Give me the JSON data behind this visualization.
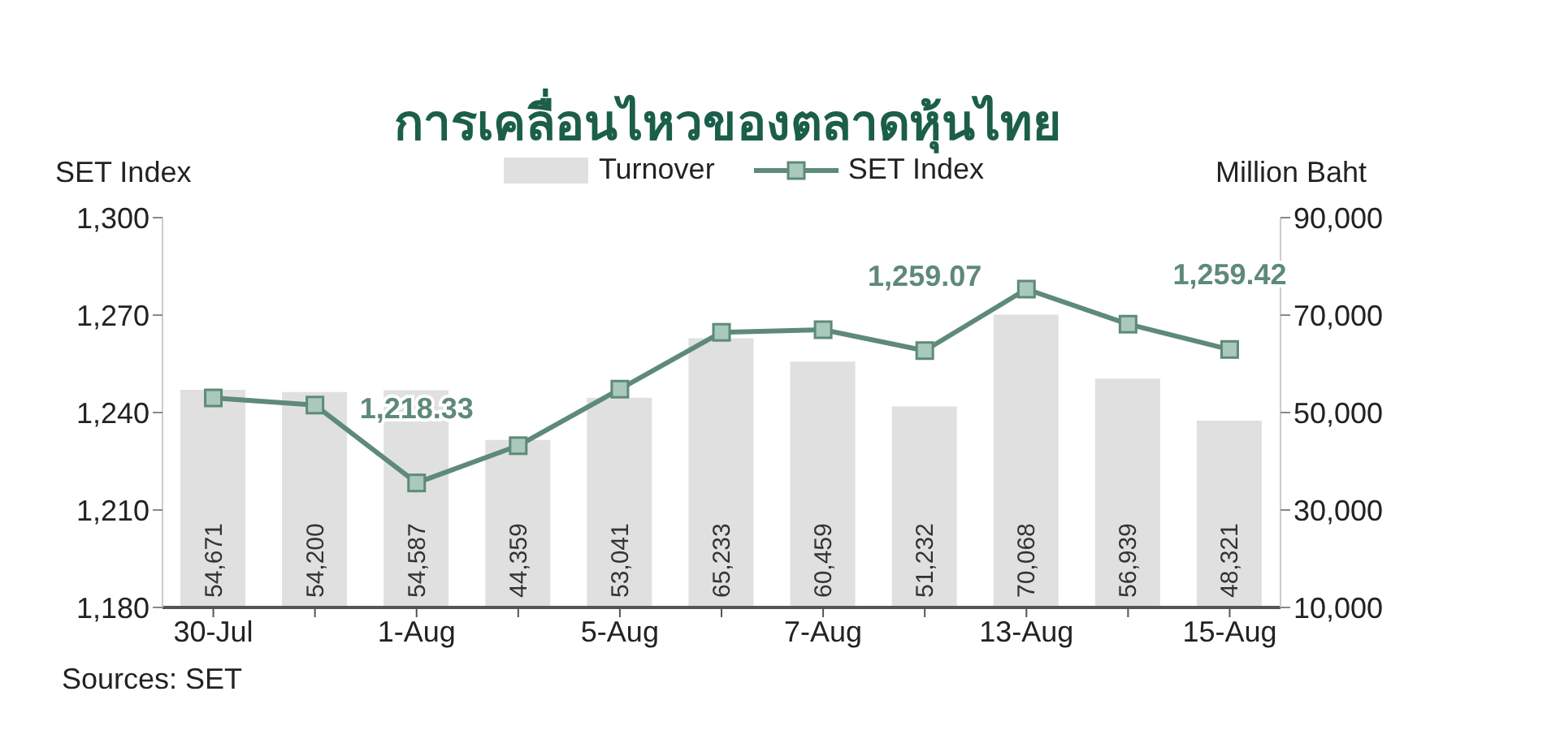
{
  "chart_data": {
    "type": "bar",
    "title": "การเคลื่อนไหวของตลาดหุ้นไทย",
    "ylabel": "SET Index",
    "y2label": "Million Baht",
    "categories": [
      "30-Jul",
      null,
      "1-Aug",
      null,
      "5-Aug",
      null,
      "7-Aug",
      null,
      "13-Aug",
      null,
      "15-Aug"
    ],
    "series": [
      {
        "name": "Turnover",
        "type": "bar",
        "axis": "y2",
        "color": "#e0e0e0",
        "values": [
          54671,
          54200,
          54587,
          44359,
          53041,
          65233,
          60459,
          51232,
          70068,
          56939,
          48321
        ],
        "value_labels": [
          "54,671",
          "54,200",
          "54,587",
          "44,359",
          "53,041",
          "65,233",
          "60,459",
          "51,232",
          "70,068",
          "56,939",
          "48,321"
        ]
      },
      {
        "name": "SET Index",
        "type": "line",
        "axis": "y",
        "color": "#5e8a78",
        "marker": "square",
        "values": [
          1244.5,
          1242.3,
          1218.33,
          1229.8,
          1247.2,
          1264.7,
          1265.5,
          1259.07,
          1278,
          1267.2,
          1259.42
        ],
        "value_labels": [
          null,
          null,
          "1,218.33",
          null,
          null,
          null,
          null,
          "1,259.07",
          null,
          null,
          "1,259.42"
        ]
      }
    ],
    "ylim": [
      1180,
      1300
    ],
    "yticks": [
      {
        "value": 1180,
        "label": "1,180"
      },
      {
        "value": 1210,
        "label": "1,210"
      },
      {
        "value": 1240,
        "label": "1,240"
      },
      {
        "value": 1270,
        "label": "1,270"
      },
      {
        "value": 1300,
        "label": "1,300"
      }
    ],
    "y2lim": [
      10000,
      90000
    ],
    "y2ticks": [
      {
        "value": 10000,
        "label": "10,000"
      },
      {
        "value": 30000,
        "label": "30,000"
      },
      {
        "value": 50000,
        "label": "50,000"
      },
      {
        "value": 70000,
        "label": "70,000"
      },
      {
        "value": 90000,
        "label": "90,000"
      }
    ],
    "grid": false,
    "legend": "top",
    "annotations": [
      "Sources: SET"
    ]
  }
}
